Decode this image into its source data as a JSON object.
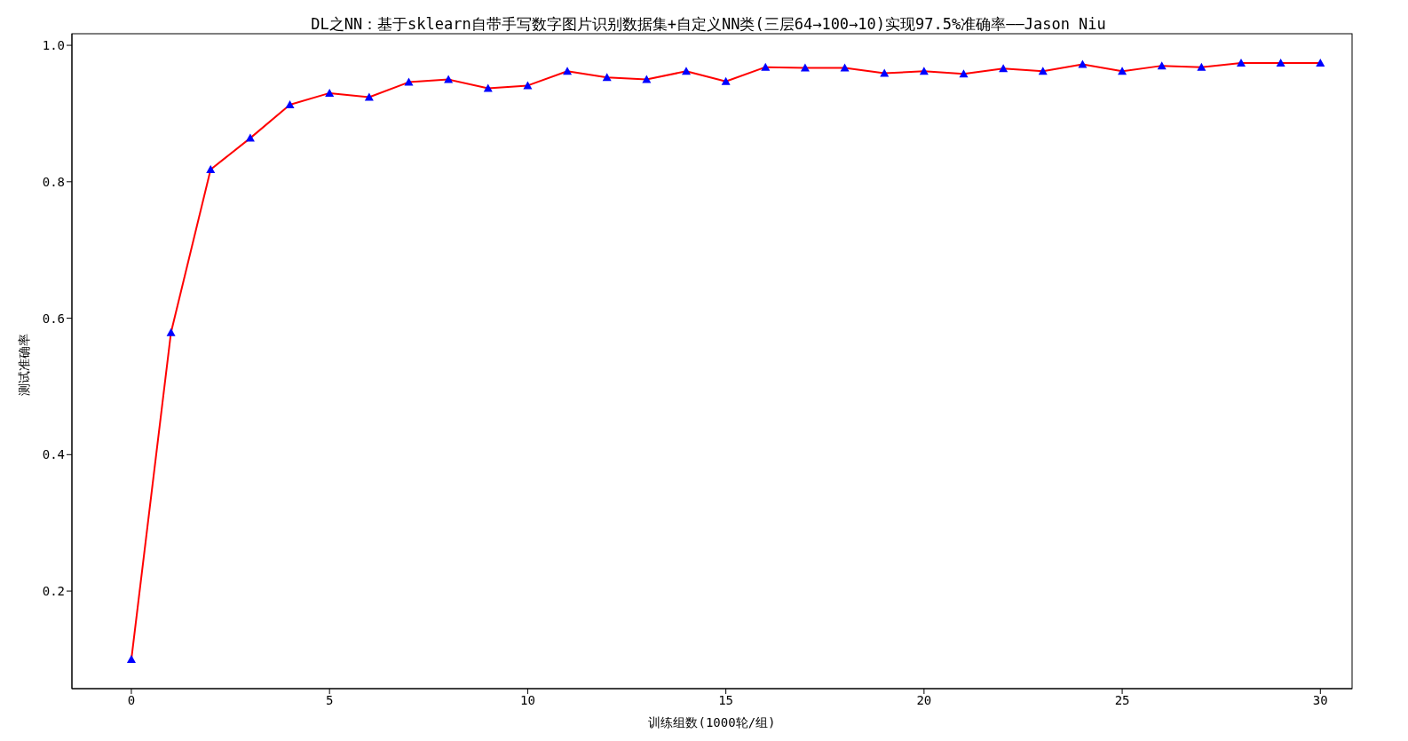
{
  "chart_data": {
    "type": "line",
    "title": "DL之NN：基于sklearn自带手写数字图片识别数据集+自定义NN类(三层64→100→10)实现97.5%准确率——Jason Niu",
    "xlabel": "训练组数(1000轮/组)",
    "ylabel": "测试准确率",
    "x": [
      0,
      1,
      2,
      3,
      4,
      5,
      6,
      7,
      8,
      9,
      10,
      11,
      12,
      13,
      14,
      15,
      16,
      17,
      18,
      19,
      20,
      21,
      22,
      23,
      24,
      25,
      26,
      27,
      28,
      29,
      30
    ],
    "series": [
      {
        "color": "#ff0000",
        "colors": [
          "#0000ff",
          "#0000ff",
          "#0000ff",
          "#0000ff",
          "#0000ff",
          "#0000ff",
          "#0000ff",
          "#0000ff",
          "#0000ff",
          "#0000ff",
          "#0000ff",
          "#0000ff",
          "#0000ff",
          "#0000ff",
          "#0000ff",
          "#0000ff",
          "#0000ff",
          "#0000ff",
          "#0000ff",
          "#0000ff",
          "#0000ff",
          "#0000ff",
          "#0000ff",
          "#0000ff",
          "#0000ff",
          "#0000ff",
          "#0000ff",
          "#0000ff",
          "#0000ff",
          "#0000ff",
          "#0000ff"
        ],
        "values": [
          0.1,
          0.579,
          0.818,
          0.864,
          0.913,
          0.93,
          0.924,
          0.946,
          0.95,
          0.937,
          0.941,
          0.962,
          0.953,
          0.95,
          0.962,
          0.947,
          0.968,
          0.967,
          0.967,
          0.959,
          0.962,
          0.958,
          0.966,
          0.962,
          0.972,
          0.962,
          0.97,
          0.968,
          0.974,
          0.974,
          0.974
        ]
      }
    ],
    "xlim": [
      -1.5,
      30.8
    ],
    "ylim": [
      0.057,
      1.017
    ],
    "xticks": [
      0,
      5,
      10,
      15,
      20,
      25,
      30
    ],
    "yticks": [
      {
        "value": 0.2,
        "label": "0.2"
      },
      {
        "value": 0.4,
        "label": "0.4"
      },
      {
        "value": 0.6,
        "label": "0.6"
      },
      {
        "value": 0.8,
        "label": "0.8"
      },
      {
        "value": 1.0,
        "label": "1.0"
      }
    ],
    "marker": "triangle",
    "line_style": "solid",
    "grid": false,
    "legend": false
  }
}
